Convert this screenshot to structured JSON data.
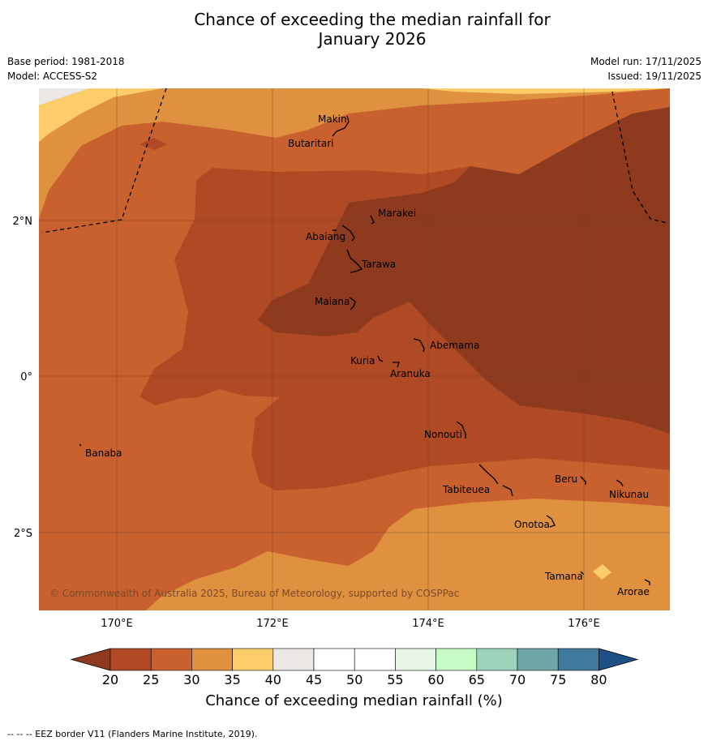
{
  "title_line1": "Chance of exceeding the median rainfall for",
  "title_line2": "January 2026",
  "meta_left": {
    "base_period": "Base period: 1981-2018",
    "model": "Model: ACCESS-S2"
  },
  "meta_right": {
    "model_run": "Model run: 17/11/2025",
    "issued": "Issued: 19/11/2025"
  },
  "copyright": "© Commonwealth of Australia 2025, Bureau of Meteorology, supported by COSPPac",
  "axes": {
    "x_ticks": [
      "170°E",
      "172°E",
      "174°E",
      "176°E"
    ],
    "y_ticks": [
      "2°N",
      "0°",
      "2°S"
    ]
  },
  "places": [
    "Makin",
    "Butaritari",
    "Marakei",
    "Abaiang",
    "Tarawa",
    "Maiana",
    "Abemama",
    "Kuria",
    "Aranuka",
    "Nonouti",
    "Banaba",
    "Beru",
    "Tabiteuea",
    "Nikunau",
    "Onotoa",
    "Tamana",
    "Arorae"
  ],
  "colorbar": {
    "title": "Chance of exceeding median rainfall (%)",
    "ticks": [
      "20",
      "25",
      "30",
      "35",
      "40",
      "45",
      "50",
      "55",
      "60",
      "65",
      "70",
      "75",
      "80"
    ],
    "colors": [
      "#8e3a1e",
      "#b04a24",
      "#c8612e",
      "#e09140",
      "#fdcd6c",
      "#ebe7e4",
      "#ffffff",
      "#ffffff",
      "#e7f6e7",
      "#c7fcc7",
      "#9ed3bb",
      "#6fa6a8",
      "#3f7a9c",
      "#1e5088"
    ]
  },
  "footnote": "--  --  -- EEZ border V11 (Flanders Marine Institute, 2019)."
}
